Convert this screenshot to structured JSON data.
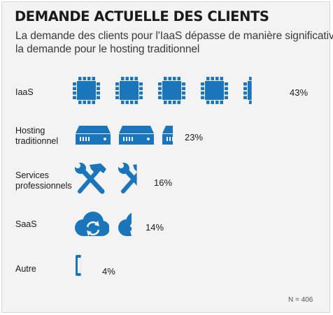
{
  "header": {
    "title": "DEMANDE ACTUELLE DES CLIENTS",
    "subtitle_line1": "La demande des clients pour l'IaaS dépasse de manière significative",
    "subtitle_line2": "la demande pour le hosting traditionnel"
  },
  "footnote": "N = 406",
  "colors": {
    "accent": "#1b75bb",
    "background": "#f3f3f3",
    "text": "#1a1a1a"
  },
  "chart_data": {
    "type": "bar",
    "categories": [
      "IaaS",
      "Hosting traditionnel",
      "Services professionnels",
      "SaaS",
      "Autre"
    ],
    "values": [
      43,
      23,
      16,
      14,
      4
    ],
    "value_labels": [
      "43%",
      "23%",
      "16%",
      "14%",
      "4%"
    ],
    "unit": "%",
    "icons": [
      "server-rack-icon",
      "server-unit-icon",
      "hammer-wrench-icon",
      "cloud-sync-icon",
      "monitor-icon"
    ],
    "percent_per_icon": 10
  }
}
